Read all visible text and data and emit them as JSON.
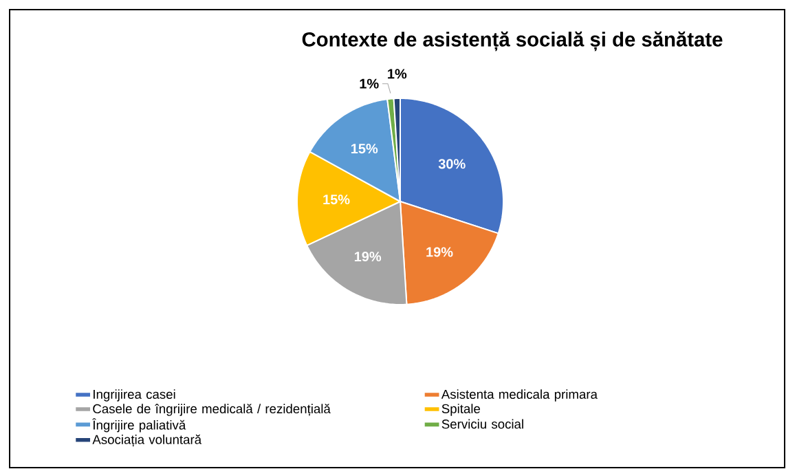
{
  "chart_data": {
    "type": "pie",
    "title": "Contexte de asistență socială și de sănătate",
    "categories": [
      "Ingrijirea casei",
      "Asistenta medicala primara",
      "Casele de îngrijire medicală / rezidențială",
      "Spitale",
      "Îngrijire paliativă",
      "Serviciu social",
      "Asociația voluntară"
    ],
    "values": [
      30,
      19,
      19,
      15,
      15,
      1,
      1
    ],
    "colors": [
      "#4472c4",
      "#ed7d31",
      "#a5a5a5",
      "#ffc000",
      "#5b9bd5",
      "#70ad47",
      "#264478"
    ],
    "value_labels": [
      "30%",
      "19%",
      "19%",
      "15%",
      "15%",
      "1%",
      "1%"
    ],
    "legend": "bottom"
  }
}
